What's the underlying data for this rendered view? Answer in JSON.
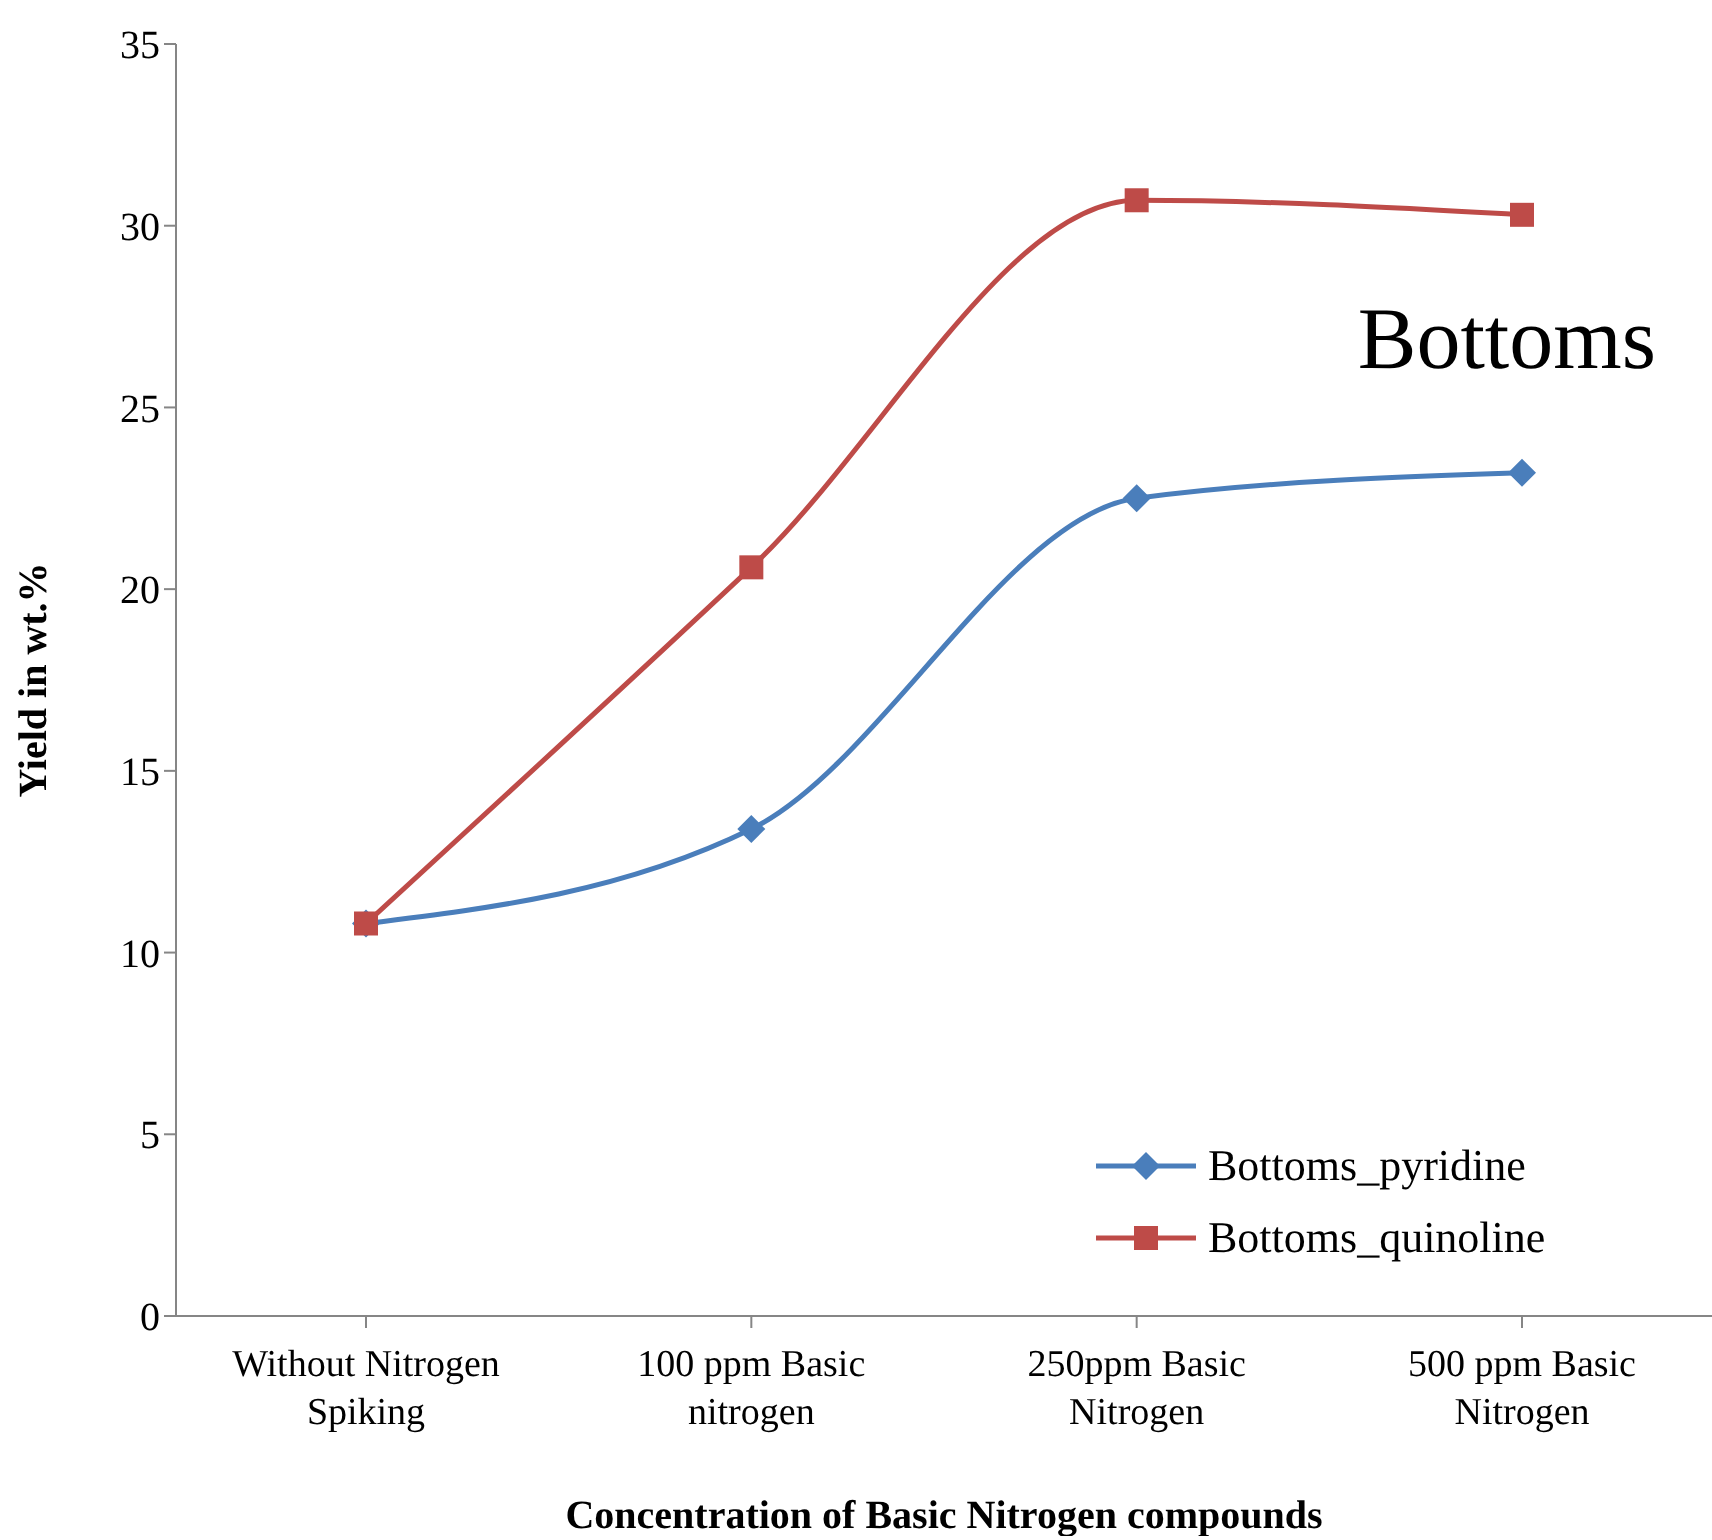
{
  "chart_data": {
    "type": "line",
    "xlabel": "Concentration of Basic Nitrogen compounds",
    "ylabel": "Yield in wt.%",
    "annotations": [
      "Bottoms"
    ],
    "categories": [
      "Without Nitrogen Spiking",
      "100 ppm Basic nitrogen",
      "250ppm Basic Nitrogen",
      "500 ppm Basic Nitrogen"
    ],
    "series": [
      {
        "name": "Bottoms_pyridine",
        "color": "#4a7ebb",
        "marker": "diamond",
        "values": [
          10.8,
          13.4,
          22.5,
          23.2
        ]
      },
      {
        "name": "Bottoms_quinoline",
        "color": "#be4b48",
        "marker": "square",
        "values": [
          10.8,
          20.6,
          30.7,
          30.3
        ]
      }
    ],
    "ylim": [
      0,
      35
    ],
    "yticks": [
      0,
      5,
      10,
      15,
      20,
      25,
      30,
      35
    ],
    "grid": false,
    "legend": "bottom right",
    "line_style": "solid"
  }
}
